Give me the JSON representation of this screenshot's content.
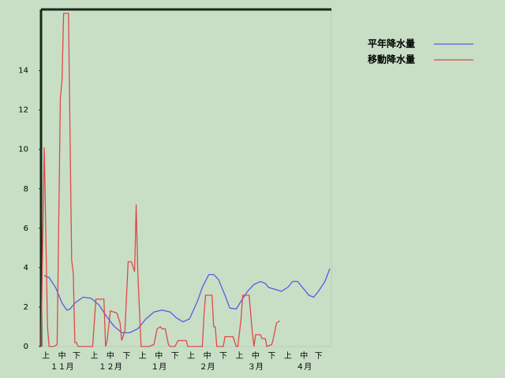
{
  "chart_data": {
    "type": "line",
    "xlim": [
      0,
      180
    ],
    "ylim": [
      0,
      17.1
    ],
    "yticks": [
      0,
      2,
      4,
      6,
      8,
      10,
      12,
      14
    ],
    "xticks": [
      {
        "value": 3,
        "label": "上"
      },
      {
        "value": 13,
        "label": "中"
      },
      {
        "value": 22,
        "label": "下"
      },
      {
        "value": 33,
        "label": "上"
      },
      {
        "value": 43,
        "label": "中"
      },
      {
        "value": 53,
        "label": "下"
      },
      {
        "value": 63,
        "label": "上"
      },
      {
        "value": 73,
        "label": "中"
      },
      {
        "value": 83,
        "label": "下"
      },
      {
        "value": 93,
        "label": "上"
      },
      {
        "value": 103,
        "label": "中"
      },
      {
        "value": 113,
        "label": "下"
      },
      {
        "value": 123,
        "label": "上"
      },
      {
        "value": 133,
        "label": "中"
      },
      {
        "value": 143,
        "label": "下"
      },
      {
        "value": 153,
        "label": "上"
      },
      {
        "value": 163,
        "label": "中"
      },
      {
        "value": 172,
        "label": "下"
      }
    ],
    "x_groups": [
      {
        "value": 13,
        "label": "１１月"
      },
      {
        "value": 43,
        "label": "１２月"
      },
      {
        "value": 73,
        "label": "１月"
      },
      {
        "value": 103,
        "label": "２月"
      },
      {
        "value": 133,
        "label": "３月"
      },
      {
        "value": 163,
        "label": "４月"
      }
    ],
    "legend": "top-right",
    "series": [
      {
        "name": "平年降水量",
        "color": "#5a5ae0",
        "x": [
          2,
          5,
          9,
          13,
          16,
          18,
          21,
          26,
          31,
          36,
          40,
          45,
          50,
          55,
          60,
          65,
          70,
          75,
          80,
          84,
          88,
          92,
          97,
          100,
          104,
          107,
          110,
          114,
          117,
          121,
          124,
          128,
          132,
          136,
          139,
          141,
          145,
          149,
          153,
          156,
          159,
          162,
          166,
          169,
          172,
          176,
          179
        ],
        "values": [
          3.6,
          3.5,
          3.0,
          2.2,
          1.85,
          1.9,
          2.2,
          2.5,
          2.45,
          2.1,
          1.6,
          1.05,
          0.7,
          0.7,
          0.9,
          1.4,
          1.75,
          1.85,
          1.75,
          1.45,
          1.25,
          1.4,
          2.3,
          3.0,
          3.65,
          3.65,
          3.4,
          2.6,
          1.95,
          1.9,
          2.3,
          2.8,
          3.15,
          3.3,
          3.2,
          3.0,
          2.9,
          2.8,
          3.0,
          3.3,
          3.3,
          3.0,
          2.6,
          2.5,
          2.8,
          3.3,
          3.95
        ]
      },
      {
        "name": "移動降水量",
        "color": "#e04848",
        "x": [
          0,
          2,
          4,
          5,
          8,
          10,
          12,
          13,
          14,
          17,
          19,
          20,
          21,
          22,
          23,
          28,
          32,
          34,
          39,
          40,
          41,
          43,
          47,
          49,
          50,
          52,
          54,
          56,
          58,
          59,
          60,
          62,
          67,
          70,
          72,
          74,
          75,
          77,
          79,
          80,
          83,
          85,
          90,
          91,
          100,
          101,
          102,
          106,
          107,
          108,
          109,
          113,
          114,
          119,
          121,
          122,
          124,
          125,
          129,
          131,
          132,
          133,
          136,
          137,
          139,
          140,
          143,
          144,
          146,
          148
        ],
        "values": [
          0,
          10.1,
          1,
          0,
          0,
          0.1,
          12.6,
          13.5,
          16.9,
          16.9,
          4.4,
          3.7,
          0.2,
          0.2,
          0,
          0,
          0,
          2.4,
          2.4,
          0,
          0.3,
          1.8,
          1.7,
          1.2,
          0.3,
          0.8,
          4.3,
          4.3,
          3.8,
          7.2,
          3.7,
          0,
          0,
          0.1,
          0.9,
          1.0,
          0.9,
          0.9,
          0.1,
          0,
          0,
          0.3,
          0.3,
          0,
          0,
          1.6,
          2.6,
          2.6,
          1.0,
          1.0,
          0,
          0,
          0.5,
          0.5,
          0,
          0,
          1.4,
          2.6,
          2.6,
          0.7,
          0,
          0.6,
          0.6,
          0.4,
          0.4,
          0,
          0.1,
          0.4,
          1.2,
          1.3
        ]
      }
    ]
  }
}
